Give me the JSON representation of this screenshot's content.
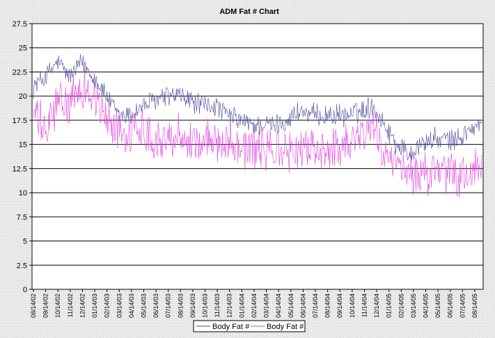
{
  "chart_data": {
    "type": "line",
    "title": "ADM Fat # Chart",
    "xlabel": "",
    "ylabel": "",
    "ylim": [
      0,
      27.5
    ],
    "yticks": [
      0,
      2.5,
      5,
      7.5,
      10,
      12.5,
      15,
      17.5,
      20,
      22.5,
      25,
      27.5
    ],
    "grid": "horizontal",
    "legend_position": "bottom",
    "x_tick_labels": [
      "08/14/02",
      "09/14/02",
      "10/14/02",
      "11/14/02",
      "12/14/02",
      "01/14/03",
      "02/14/03",
      "03/14/03",
      "04/14/03",
      "05/14/03",
      "06/14/03",
      "07/14/03",
      "08/14/03",
      "09/14/03",
      "10/14/03",
      "11/14/03",
      "12/14/03",
      "01/14/04",
      "02/14/04",
      "03/14/04",
      "04/14/04",
      "05/14/04",
      "06/14/04",
      "07/14/04",
      "08/14/04",
      "09/14/04",
      "10/14/04",
      "11/14/04",
      "12/14/04",
      "01/14/05",
      "02/14/05",
      "03/14/05",
      "04/14/05",
      "05/14/05",
      "06/14/05",
      "07/14/05",
      "08/14/05"
    ],
    "series_profile_x": [
      "08/14/02",
      "09/14/02",
      "10/14/02",
      "11/14/02",
      "12/14/02",
      "01/14/03",
      "02/14/03",
      "03/14/03",
      "04/14/03",
      "05/14/03",
      "06/14/03",
      "07/14/03",
      "08/14/03",
      "09/14/03",
      "10/14/03",
      "11/14/03",
      "12/14/03",
      "01/14/04",
      "02/14/04",
      "03/14/04",
      "04/14/04",
      "05/14/04",
      "06/14/04",
      "07/14/04",
      "08/14/04",
      "09/14/04",
      "10/14/04",
      "11/14/04",
      "12/14/04",
      "01/14/05",
      "02/14/05",
      "03/14/05",
      "04/14/05",
      "05/14/05",
      "06/14/05",
      "07/14/05",
      "08/14/05",
      "09/01/05"
    ],
    "series": [
      {
        "name": "Body Fat #",
        "color": "#4a4a9c",
        "values": [
          21.0,
          22.0,
          23.5,
          22.0,
          23.5,
          22.0,
          20.0,
          18.0,
          18.0,
          19.0,
          19.5,
          20.0,
          20.0,
          19.5,
          19.0,
          19.0,
          18.0,
          17.5,
          17.0,
          17.0,
          17.0,
          17.5,
          18.5,
          18.0,
          18.0,
          18.0,
          18.0,
          18.5,
          19.0,
          17.0,
          15.0,
          14.0,
          15.0,
          15.5,
          15.5,
          15.5,
          16.5,
          17.0
        ],
        "amplitude": 1.4
      },
      {
        "name": "Body Fat #",
        "color": "#e040e0",
        "values": [
          18.5,
          16.0,
          19.5,
          19.0,
          21.0,
          20.0,
          17.5,
          16.5,
          16.0,
          17.0,
          15.5,
          15.5,
          16.0,
          15.5,
          15.0,
          15.5,
          15.5,
          15.0,
          14.5,
          14.5,
          14.5,
          14.0,
          14.5,
          14.5,
          14.5,
          14.5,
          15.5,
          16.0,
          17.0,
          14.0,
          12.5,
          12.0,
          12.0,
          12.0,
          12.0,
          11.5,
          12.0,
          12.5
        ],
        "amplitude": 2.8
      }
    ]
  }
}
